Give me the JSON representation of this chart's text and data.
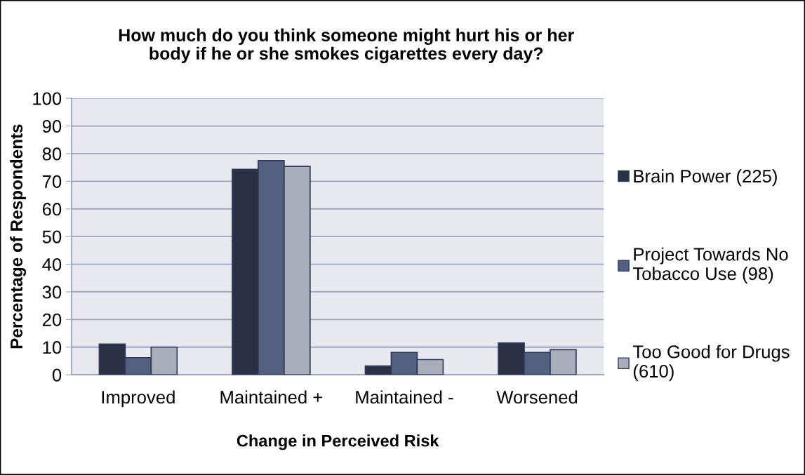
{
  "chart_data": {
    "type": "bar",
    "title": "How much do you think someone might hurt his or her body if he or she smokes cigarettes every day?",
    "xlabel": "Change in Perceived Risk",
    "ylabel": "Percentage of Respondents",
    "categories": [
      "Improved",
      "Maintained +",
      "Maintained -",
      "Worsened"
    ],
    "series": [
      {
        "name": "Brain Power (225)",
        "color": "#2b3045",
        "values": [
          11.1,
          74.3,
          3.2,
          11.5
        ]
      },
      {
        "name": "Project Towards No Tobacco Use (98)",
        "color": "#536080",
        "values": [
          6.2,
          77.5,
          8.1,
          8.1
        ]
      },
      {
        "name": "Too Good for Drugs (610)",
        "color": "#a9adb9",
        "values": [
          10.0,
          75.4,
          5.5,
          9.1
        ]
      }
    ],
    "ylim": [
      0,
      100
    ],
    "yticks": [
      0,
      10,
      20,
      30,
      40,
      50,
      60,
      70,
      80,
      90,
      100
    ],
    "grid": "y",
    "legend": "right",
    "marker": "square"
  }
}
